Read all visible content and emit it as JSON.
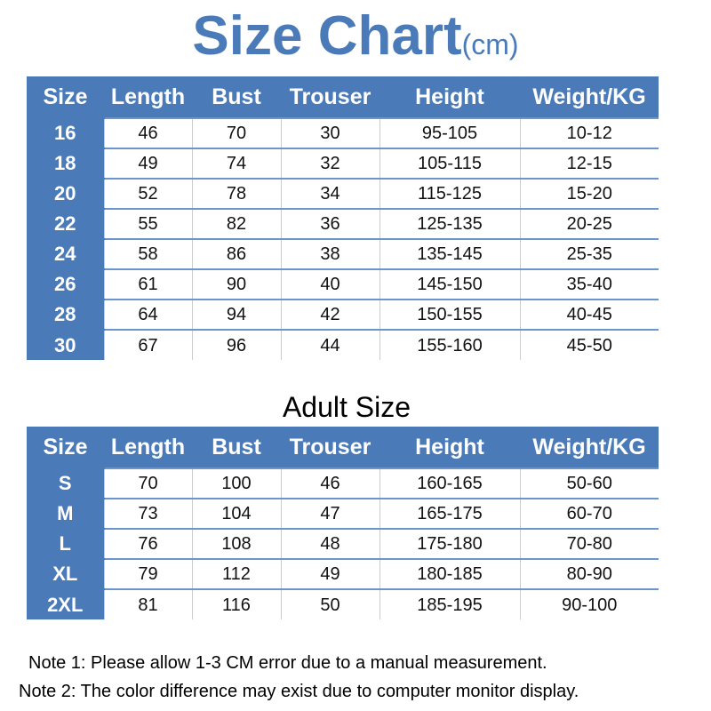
{
  "title": {
    "main": "Size Chart",
    "unit": "(cm)"
  },
  "columns": [
    "Size",
    "Length",
    "Bust",
    "Trouser",
    "Height",
    "Weight/KG"
  ],
  "kids_rows": [
    [
      "16",
      "46",
      "70",
      "30",
      "95-105",
      "10-12"
    ],
    [
      "18",
      "49",
      "74",
      "32",
      "105-115",
      "12-15"
    ],
    [
      "20",
      "52",
      "78",
      "34",
      "115-125",
      "15-20"
    ],
    [
      "22",
      "55",
      "82",
      "36",
      "125-135",
      "20-25"
    ],
    [
      "24",
      "58",
      "86",
      "38",
      "135-145",
      "25-35"
    ],
    [
      "26",
      "61",
      "90",
      "40",
      "145-150",
      "35-40"
    ],
    [
      "28",
      "64",
      "94",
      "42",
      "150-155",
      "40-45"
    ],
    [
      "30",
      "67",
      "96",
      "44",
      "155-160",
      "45-50"
    ]
  ],
  "adult_title": "Adult Size",
  "adult_rows": [
    [
      "S",
      "70",
      "100",
      "46",
      "160-165",
      "50-60"
    ],
    [
      "M",
      "73",
      "104",
      "47",
      "165-175",
      "60-70"
    ],
    [
      "L",
      "76",
      "108",
      "48",
      "175-180",
      "70-80"
    ],
    [
      "XL",
      "79",
      "112",
      "49",
      "180-185",
      "80-90"
    ],
    [
      "2XL",
      "81",
      "116",
      "50",
      "185-195",
      "90-100"
    ]
  ],
  "notes": [
    "Note 1: Please allow 1-3 CM error due to a manual measurement.",
    "Note 2: The color difference may exist due to computer monitor display."
  ],
  "colors": {
    "accent": "#4a7ab8"
  }
}
